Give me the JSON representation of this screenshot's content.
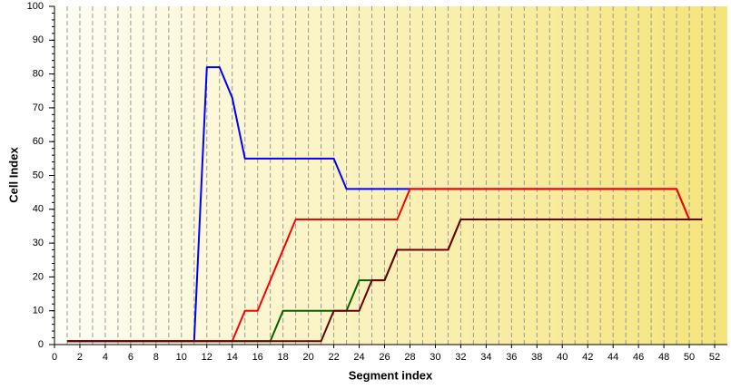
{
  "chart_data": {
    "type": "line",
    "x_label": "Segment index",
    "y_label": "Cell Index",
    "x": [
      1,
      2,
      3,
      4,
      5,
      6,
      7,
      8,
      9,
      10,
      11,
      12,
      13,
      14,
      15,
      16,
      17,
      18,
      19,
      20,
      21,
      22,
      23,
      24,
      25,
      26,
      27,
      28,
      29,
      30,
      31,
      32,
      33,
      34,
      35,
      36,
      37,
      38,
      39,
      40,
      41,
      42,
      43,
      44,
      45,
      46,
      47,
      48,
      49,
      50,
      51
    ],
    "series": [
      {
        "color": "#0000ff",
        "values": [
          1,
          1,
          1,
          1,
          1,
          1,
          1,
          1,
          1,
          1,
          1,
          82,
          82,
          73,
          55,
          55,
          55,
          55,
          55,
          55,
          55,
          55,
          46,
          46,
          46,
          46,
          46,
          46,
          46,
          46,
          46,
          46,
          46,
          46,
          46,
          46,
          46,
          46,
          46,
          46,
          46,
          46,
          46,
          46,
          46,
          46,
          46,
          46,
          46,
          37,
          37
        ]
      },
      {
        "color": "#006400",
        "values": [
          1,
          1,
          1,
          1,
          1,
          1,
          1,
          1,
          1,
          1,
          1,
          1,
          1,
          1,
          1,
          1,
          1,
          10,
          10,
          10,
          10,
          10,
          10,
          19,
          19,
          19,
          28,
          28,
          28,
          28,
          28,
          37,
          37,
          37,
          37,
          37,
          37,
          37,
          37,
          37,
          37,
          37,
          37,
          37,
          37,
          37,
          37,
          37,
          37,
          37,
          37
        ]
      },
      {
        "color": "#ff0000",
        "values": [
          1,
          1,
          1,
          1,
          1,
          1,
          1,
          1,
          1,
          1,
          1,
          1,
          1,
          1,
          10,
          10,
          19,
          28,
          37,
          37,
          37,
          37,
          37,
          37,
          37,
          37,
          37,
          46,
          46,
          46,
          46,
          46,
          46,
          46,
          46,
          46,
          46,
          46,
          46,
          46,
          46,
          46,
          46,
          46,
          46,
          46,
          46,
          46,
          46,
          37,
          37
        ]
      },
      {
        "color": "#6b0000",
        "values": [
          1,
          1,
          1,
          1,
          1,
          1,
          1,
          1,
          1,
          1,
          1,
          1,
          1,
          1,
          1,
          1,
          1,
          1,
          1,
          1,
          1,
          10,
          10,
          10,
          19,
          19,
          28,
          28,
          28,
          28,
          28,
          37,
          37,
          37,
          37,
          37,
          37,
          37,
          37,
          37,
          37,
          37,
          37,
          37,
          37,
          37,
          37,
          37,
          37,
          37,
          37
        ]
      }
    ],
    "xlim": [
      0,
      53
    ],
    "ylim": [
      0,
      100
    ],
    "xticks": [
      0,
      2,
      4,
      6,
      8,
      10,
      12,
      14,
      16,
      18,
      20,
      22,
      24,
      26,
      28,
      30,
      32,
      34,
      36,
      38,
      40,
      42,
      44,
      46,
      48,
      50,
      52
    ],
    "yticks": [
      0,
      10,
      20,
      30,
      40,
      50,
      60,
      70,
      80,
      90,
      100
    ],
    "grid": true
  }
}
